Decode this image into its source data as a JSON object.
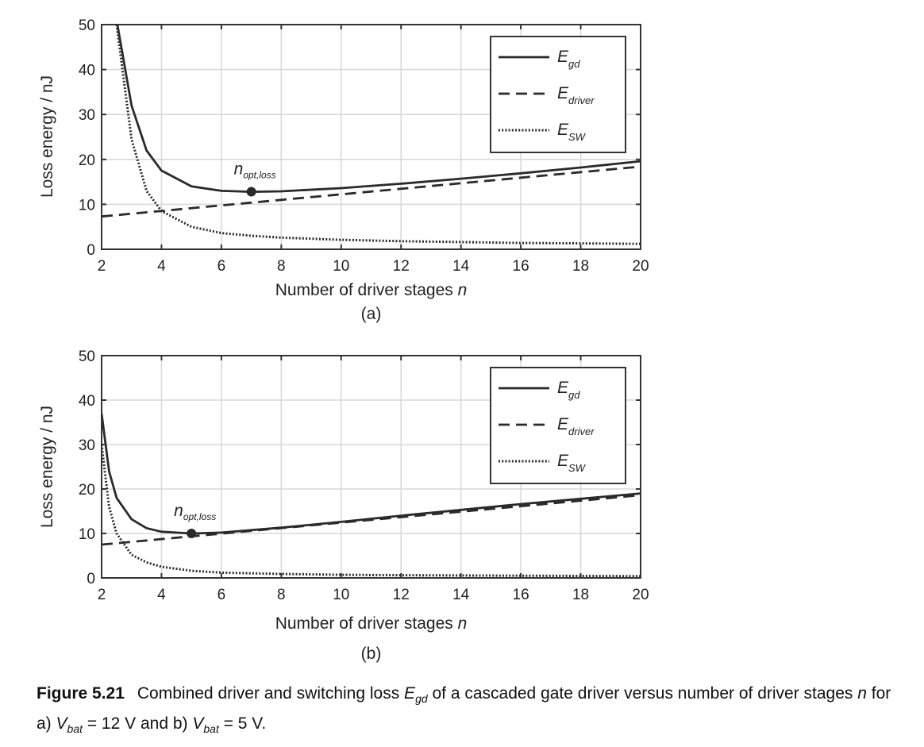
{
  "chart_data": [
    {
      "type": "line",
      "panel_label": "(a)",
      "xlabel": "Number of driver stages",
      "xlabel_var": "n",
      "ylabel": "Loss energy / nJ",
      "xlim": [
        2,
        20
      ],
      "ylim": [
        0,
        50
      ],
      "xticks": [
        2,
        4,
        6,
        8,
        10,
        12,
        14,
        16,
        18,
        20
      ],
      "yticks": [
        0,
        10,
        20,
        30,
        40,
        50
      ],
      "grid": true,
      "legend_position": "top-right",
      "series": [
        {
          "name": "E",
          "sub": "gd",
          "style": "solid",
          "x": [
            2.5,
            3,
            3.5,
            4,
            5,
            6,
            7,
            8,
            10,
            12,
            14,
            16,
            18,
            20
          ],
          "y": [
            51,
            32,
            22,
            17.5,
            14,
            13,
            12.8,
            12.9,
            13.6,
            14.6,
            15.7,
            16.9,
            18.2,
            19.6
          ]
        },
        {
          "name": "E",
          "sub": "driver",
          "style": "dashed",
          "x": [
            2,
            20
          ],
          "y": [
            7.3,
            18.4
          ]
        },
        {
          "name": "E",
          "sub": "SW",
          "style": "dotted",
          "x": [
            2.5,
            3,
            3.5,
            4,
            5,
            6,
            7,
            8,
            10,
            12,
            14,
            16,
            18,
            20
          ],
          "y": [
            50,
            24.5,
            13,
            8.5,
            5,
            3.6,
            3,
            2.6,
            2.1,
            1.8,
            1.6,
            1.4,
            1.3,
            1.2
          ]
        }
      ],
      "annotation": {
        "text": "n",
        "sub": "opt,loss",
        "point": [
          7,
          12.8
        ]
      }
    },
    {
      "type": "line",
      "panel_label": "(b)",
      "xlabel": "Number of driver stages",
      "xlabel_var": "n",
      "ylabel": "Loss energy / nJ",
      "xlim": [
        2,
        20
      ],
      "ylim": [
        0,
        50
      ],
      "xticks": [
        2,
        4,
        6,
        8,
        10,
        12,
        14,
        16,
        18,
        20
      ],
      "yticks": [
        0,
        10,
        20,
        30,
        40,
        50
      ],
      "grid": true,
      "legend_position": "top-right",
      "series": [
        {
          "name": "E",
          "sub": "gd",
          "style": "solid",
          "x": [
            2,
            2.25,
            2.5,
            3,
            3.5,
            4,
            5,
            6,
            8,
            10,
            12,
            14,
            16,
            18,
            20
          ],
          "y": [
            37,
            24,
            18,
            13.2,
            11.2,
            10.4,
            10,
            10.2,
            11.3,
            12.6,
            14,
            15.3,
            16.6,
            17.8,
            19
          ]
        },
        {
          "name": "E",
          "sub": "driver",
          "style": "dashed",
          "x": [
            2,
            20
          ],
          "y": [
            7.5,
            18.6
          ]
        },
        {
          "name": "E",
          "sub": "SW",
          "style": "dotted",
          "x": [
            2,
            2.25,
            2.5,
            3,
            3.5,
            4,
            5,
            6,
            8,
            10,
            12,
            14,
            16,
            18,
            20
          ],
          "y": [
            30,
            16,
            10,
            5.2,
            3.5,
            2.5,
            1.6,
            1.2,
            0.9,
            0.7,
            0.6,
            0.55,
            0.5,
            0.45,
            0.4
          ]
        }
      ],
      "annotation": {
        "text": "n",
        "sub": "opt,loss",
        "point": [
          5,
          10
        ]
      }
    }
  ],
  "caption": {
    "figure_label": "Figure 5.21",
    "text_1": "Combined driver and switching loss ",
    "var_1": "E",
    "sub_1": "gd",
    "text_2": " of a cascaded gate driver versus number of driver stages ",
    "var_2": "n",
    "text_3": " for a) ",
    "var_3": "V",
    "sub_3": "bat",
    "text_4": " = 12 V and b) ",
    "var_4": "V",
    "sub_4": "bat",
    "text_5": " = 5 V."
  },
  "colors": {
    "line": "#2a2a2a",
    "grid": "#d9d9d9",
    "axes": "#333333"
  }
}
